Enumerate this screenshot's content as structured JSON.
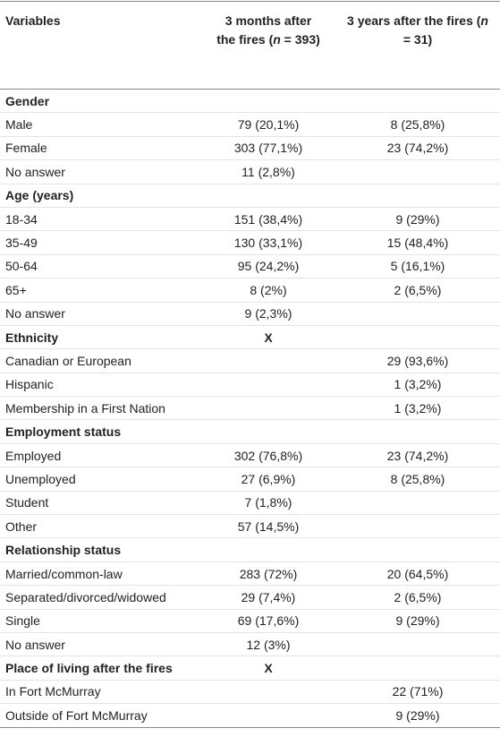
{
  "table": {
    "header": [
      [
        "Variables"
      ],
      [
        "3 months after the fires (",
        "n",
        " = 393)"
      ],
      [
        "3 years after the fires (",
        "n",
        " = 31)"
      ]
    ],
    "rows": [
      {
        "label": "Gender",
        "section": true
      },
      {
        "label": "Male",
        "c1": "79 (20,1%)",
        "c2": "8 (25,8%)"
      },
      {
        "label": "Female",
        "c1": "303 (77,1%)",
        "c2": "23 (74,2%)"
      },
      {
        "label": "No answer",
        "c1": "11 (2,8%)"
      },
      {
        "label": "Age (years)",
        "section": true
      },
      {
        "label": "18-34",
        "c1": "151 (38,4%)",
        "c2": "9 (29%)"
      },
      {
        "label": "35-49",
        "c1": "130 (33,1%)",
        "c2": "15 (48,4%)"
      },
      {
        "label": "50-64",
        "c1": "95 (24,2%)",
        "c2": "5 (16,1%)"
      },
      {
        "label": "65+",
        "c1": "8 (2%)",
        "c2": "2 (6,5%)"
      },
      {
        "label": "No answer",
        "c1": "9 (2,3%)"
      },
      {
        "label": "Ethnicity",
        "section": true,
        "c1": "X"
      },
      {
        "label": "Canadian or European",
        "c2": "29 (93,6%)"
      },
      {
        "label": "Hispanic",
        "c2": "1 (3,2%)"
      },
      {
        "label": "Membership in a First Nation",
        "c2": "1 (3,2%)"
      },
      {
        "label": "Employment status",
        "section": true
      },
      {
        "label": "Employed",
        "c1": "302 (76,8%)",
        "c2": "23 (74,2%)"
      },
      {
        "label": "Unemployed",
        "c1": "27 (6,9%)",
        "c2": "8 (25,8%)"
      },
      {
        "label": "Student",
        "c1": "7 (1,8%)"
      },
      {
        "label": "Other",
        "c1": "57 (14,5%)"
      },
      {
        "label": "Relationship status",
        "section": true
      },
      {
        "label": "Married/common-law",
        "c1": "283 (72%)",
        "c2": "20 (64,5%)"
      },
      {
        "label": "Separated/divorced/widowed",
        "c1": "29 (7,4%)",
        "c2": "2 (6,5%)"
      },
      {
        "label": "Single",
        "c1": "69 (17,6%)",
        "c2": "9 (29%)"
      },
      {
        "label": "No answer",
        "c1": "12 (3%)"
      },
      {
        "label": "Place of living after the fires",
        "section": true,
        "c1": "X"
      },
      {
        "label": "In Fort McMurray",
        "c2": "22 (71%)"
      },
      {
        "label": "Outside of Fort McMurray",
        "c2": "9 (29%)"
      }
    ]
  }
}
